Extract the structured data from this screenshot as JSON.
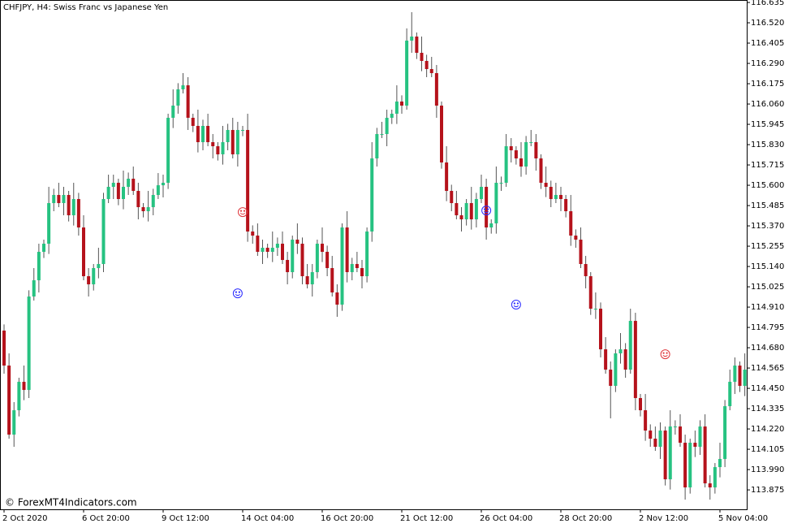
{
  "chart_data": {
    "type": "candlestick",
    "title": "CHFJPY, H4:  Swiss Franc vs Japanese Yen",
    "watermark": "© ForexMT4Indicators.com",
    "up_color": "#26c281",
    "down_color": "#b5121b",
    "wick_color": "#555555",
    "categories": [
      "2 Oct 2020",
      null,
      null,
      null,
      null,
      null,
      null,
      null,
      null,
      null,
      null,
      null,
      null,
      null,
      null,
      null,
      "6 Oct 20:00",
      null,
      null,
      null,
      null,
      null,
      null,
      null,
      null,
      null,
      null,
      null,
      null,
      null,
      null,
      null,
      "9 Oct 12:00",
      null,
      null,
      null,
      null,
      null,
      null,
      null,
      null,
      null,
      null,
      null,
      null,
      null,
      null,
      null,
      "14 Oct 04:00",
      null,
      null,
      null,
      null,
      null,
      null,
      null,
      null,
      null,
      null,
      null,
      null,
      null,
      null,
      null,
      "16 Oct 20:00",
      null,
      null,
      null,
      null,
      null,
      null,
      null,
      null,
      null,
      null,
      null,
      null,
      null,
      null,
      null,
      "21 Oct 12:00",
      null,
      null,
      null,
      null,
      null,
      null,
      null,
      null,
      null,
      null,
      null,
      null,
      null,
      null,
      null,
      "26 Oct 04:00",
      null,
      null,
      null,
      null,
      null,
      null,
      null,
      null,
      null,
      null,
      null,
      null,
      null,
      null,
      null,
      "28 Oct 20:00",
      null,
      null,
      null,
      null,
      null,
      null,
      null,
      null,
      null,
      null,
      null,
      null,
      null,
      null,
      null,
      "2 Nov 12:00",
      null,
      null,
      null,
      null,
      null,
      null,
      null,
      null,
      null,
      null,
      null,
      null,
      null,
      null,
      null,
      "5 Nov 04:00",
      null,
      null,
      null,
      null,
      null
    ],
    "open": [
      114.777,
      114.579,
      114.188,
      114.326,
      114.487,
      114.441,
      114.97,
      115.062,
      115.223,
      115.269,
      115.499,
      115.545,
      115.499,
      115.545,
      115.43,
      115.522,
      115.361,
      115.085,
      115.039,
      115.131,
      115.154,
      115.522,
      115.591,
      115.614,
      115.522,
      115.591,
      115.637,
      115.568,
      115.476,
      115.453,
      115.476,
      115.545,
      115.6,
      115.614,
      115.982,
      116.051,
      116.143,
      116.166,
      115.982,
      115.936,
      115.844,
      115.936,
      115.844,
      115.821,
      115.775,
      115.844,
      115.913,
      115.775,
      115.913,
      115.913,
      115.338,
      115.315,
      115.223,
      115.246,
      115.223,
      115.246,
      115.269,
      115.177,
      115.108,
      115.292,
      115.269,
      115.085,
      115.039,
      115.108,
      115.269,
      115.223,
      115.131,
      114.993,
      114.924,
      115.361,
      115.108,
      115.154,
      115.131,
      115.085,
      115.338,
      115.752,
      115.89,
      115.89,
      115.982,
      116.005,
      116.074,
      116.051,
      116.419,
      116.442,
      116.35,
      116.304,
      116.258,
      116.235,
      116.051,
      115.729,
      115.568,
      115.499,
      115.43,
      115.407,
      115.499,
      115.407,
      115.522,
      115.591,
      115.361,
      115.384,
      115.614,
      115.614,
      115.821,
      115.798,
      115.752,
      115.706,
      115.844,
      115.844,
      115.752,
      115.614,
      115.591,
      115.522,
      115.545,
      115.522,
      115.453,
      115.315,
      115.292,
      115.154,
      115.085,
      114.901,
      114.901,
      114.671,
      114.556,
      114.464,
      114.648,
      114.671,
      114.556,
      114.832,
      114.395,
      114.326,
      114.211,
      114.165,
      114.119,
      114.211,
      113.935,
      114.234,
      114.234,
      114.142,
      113.889,
      114.142,
      114.119,
      114.234,
      113.912,
      113.889,
      114.004,
      114.05,
      114.349,
      114.487,
      114.579,
      114.464
    ],
    "high": [
      114.812,
      114.648,
      114.372,
      114.51,
      114.579,
      115.005,
      115.131,
      115.269,
      115.292,
      115.591,
      115.58,
      115.614,
      115.591,
      115.568,
      115.614,
      115.557,
      115.43,
      115.131,
      115.154,
      115.246,
      115.557,
      115.66,
      115.66,
      115.637,
      115.683,
      115.672,
      115.706,
      115.614,
      115.499,
      115.568,
      115.58,
      115.669,
      115.66,
      116.005,
      116.143,
      116.178,
      116.235,
      116.212,
      116.005,
      116.028,
      115.971,
      116.005,
      115.89,
      115.844,
      115.936,
      115.948,
      115.982,
      115.959,
      115.936,
      116.005,
      115.373,
      115.384,
      115.292,
      115.269,
      115.338,
      115.304,
      115.338,
      115.223,
      115.315,
      115.384,
      115.304,
      115.154,
      115.154,
      115.292,
      115.361,
      115.258,
      115.2,
      115.039,
      115.384,
      115.453,
      115.189,
      115.223,
      115.177,
      115.361,
      115.844,
      115.925,
      115.959,
      116.028,
      116.028,
      116.166,
      116.109,
      116.488,
      116.58,
      116.465,
      116.442,
      116.339,
      116.327,
      116.281,
      116.074,
      115.821,
      115.603,
      115.568,
      115.476,
      115.522,
      115.591,
      115.557,
      115.66,
      115.637,
      115.407,
      115.706,
      115.649,
      115.89,
      115.867,
      115.821,
      115.844,
      115.879,
      115.913,
      115.89,
      115.775,
      115.706,
      115.626,
      115.614,
      115.591,
      115.545,
      115.545,
      115.35,
      115.361,
      115.2,
      115.108,
      114.993,
      114.936,
      114.74,
      114.602,
      114.671,
      114.763,
      114.706,
      114.901,
      114.878,
      114.418,
      114.418,
      114.246,
      114.234,
      114.257,
      114.234,
      114.326,
      114.269,
      114.303,
      114.188,
      114.165,
      114.211,
      114.269,
      114.303,
      113.958,
      114.027,
      114.142,
      114.384,
      114.556,
      114.625,
      114.602,
      114.648
    ],
    "low": [
      114.533,
      114.165,
      114.119,
      114.291,
      114.383,
      114.395,
      114.947,
      114.993,
      115.188,
      115.211,
      115.453,
      115.476,
      115.43,
      115.395,
      115.372,
      115.315,
      115.062,
      114.97,
      115.004,
      115.073,
      115.108,
      115.499,
      115.522,
      115.487,
      115.464,
      115.545,
      115.545,
      115.407,
      115.418,
      115.395,
      115.43,
      115.522,
      115.531,
      115.579,
      115.924,
      116.005,
      116.12,
      115.913,
      115.901,
      115.786,
      115.798,
      115.821,
      115.752,
      115.74,
      115.717,
      115.798,
      115.752,
      115.706,
      115.878,
      115.28,
      115.269,
      115.2,
      115.154,
      115.188,
      115.165,
      115.2,
      115.154,
      115.039,
      115.073,
      115.211,
      115.039,
      115.016,
      114.97,
      115.073,
      115.165,
      115.085,
      114.97,
      114.855,
      114.889,
      115.05,
      115.062,
      115.108,
      115.016,
      115.05,
      115.28,
      115.706,
      115.867,
      115.821,
      115.947,
      115.947,
      116.005,
      116.028,
      116.35,
      116.315,
      116.246,
      116.212,
      116.212,
      115.982,
      115.694,
      115.51,
      115.453,
      115.407,
      115.338,
      115.372,
      115.349,
      115.361,
      115.499,
      115.292,
      115.326,
      115.326,
      115.568,
      115.591,
      115.729,
      115.717,
      115.648,
      115.66,
      115.821,
      115.683,
      115.579,
      115.533,
      115.476,
      115.499,
      115.453,
      115.418,
      115.257,
      115.246,
      115.131,
      115.016,
      114.866,
      114.843,
      114.625,
      114.533,
      114.28,
      114.429,
      114.59,
      114.51,
      114.533,
      114.326,
      114.291,
      114.153,
      114.119,
      114.096,
      114.05,
      113.9,
      113.877,
      114.188,
      114.119,
      113.82,
      113.854,
      114.061,
      114.073,
      113.889,
      113.82,
      113.854,
      113.946,
      114.004,
      114.326,
      114.418,
      114.429,
      114.406
    ],
    "close": [
      114.579,
      114.188,
      114.326,
      114.487,
      114.441,
      114.97,
      115.062,
      115.223,
      115.269,
      115.499,
      115.545,
      115.499,
      115.545,
      115.43,
      115.522,
      115.361,
      115.085,
      115.039,
      115.131,
      115.154,
      115.522,
      115.591,
      115.614,
      115.522,
      115.591,
      115.637,
      115.568,
      115.476,
      115.453,
      115.476,
      115.545,
      115.6,
      115.614,
      115.982,
      116.051,
      116.143,
      116.166,
      115.982,
      115.936,
      115.844,
      115.936,
      115.844,
      115.821,
      115.775,
      115.844,
      115.913,
      115.775,
      115.913,
      115.913,
      115.338,
      115.315,
      115.223,
      115.246,
      115.223,
      115.246,
      115.269,
      115.177,
      115.108,
      115.292,
      115.269,
      115.085,
      115.039,
      115.108,
      115.269,
      115.223,
      115.131,
      114.993,
      114.924,
      115.361,
      115.108,
      115.154,
      115.131,
      115.085,
      115.338,
      115.752,
      115.89,
      115.89,
      115.982,
      116.005,
      116.074,
      116.051,
      116.419,
      116.442,
      116.35,
      116.304,
      116.258,
      116.235,
      116.051,
      115.729,
      115.568,
      115.499,
      115.43,
      115.407,
      115.499,
      115.407,
      115.522,
      115.591,
      115.361,
      115.384,
      115.614,
      115.614,
      115.821,
      115.798,
      115.752,
      115.706,
      115.844,
      115.844,
      115.752,
      115.614,
      115.591,
      115.522,
      115.545,
      115.522,
      115.453,
      115.315,
      115.292,
      115.154,
      115.085,
      114.901,
      114.901,
      114.671,
      114.556,
      114.464,
      114.648,
      114.671,
      114.556,
      114.832,
      114.395,
      114.326,
      114.211,
      114.165,
      114.119,
      114.211,
      113.935,
      114.234,
      114.234,
      114.142,
      113.889,
      114.142,
      114.119,
      114.234,
      113.912,
      113.889,
      114.004,
      114.05,
      114.349,
      114.487,
      114.579,
      114.464,
      114.556
    ],
    "signals": [
      {
        "index": 48,
        "value": 115.448,
        "color": "#e0393e"
      },
      {
        "index": 47,
        "value": 114.988,
        "color": "#2b2bff"
      },
      {
        "index": 97,
        "value": 115.457,
        "color": "#2b2bff"
      },
      {
        "index": 103,
        "value": 114.924,
        "color": "#2b2bff"
      },
      {
        "index": 133,
        "value": 114.643,
        "color": "#e0393e"
      }
    ],
    "ylim": [
      113.765,
      116.649
    ],
    "yticks": [
      116.635,
      {
        "value": 116.52,
        "label": "116.520"
      },
      116.405,
      {
        "value": 116.29,
        "label": "116.290"
      },
      116.175,
      {
        "value": 116.06,
        "label": "116.060"
      },
      115.945,
      {
        "value": 115.83,
        "label": "115.830"
      },
      115.715,
      {
        "value": 115.6,
        "label": "115.600"
      },
      115.485,
      {
        "value": 115.37,
        "label": "115.370"
      },
      115.255,
      {
        "value": 115.14,
        "label": "115.140"
      },
      115.025,
      {
        "value": 114.91,
        "label": "114.910"
      },
      114.795,
      {
        "value": 114.68,
        "label": "114.680"
      },
      114.565,
      {
        "value": 114.45,
        "label": "114.450"
      },
      114.335,
      {
        "value": 114.22,
        "label": "114.220"
      },
      114.105,
      {
        "value": 113.99,
        "label": "113.990"
      },
      113.875
    ]
  }
}
